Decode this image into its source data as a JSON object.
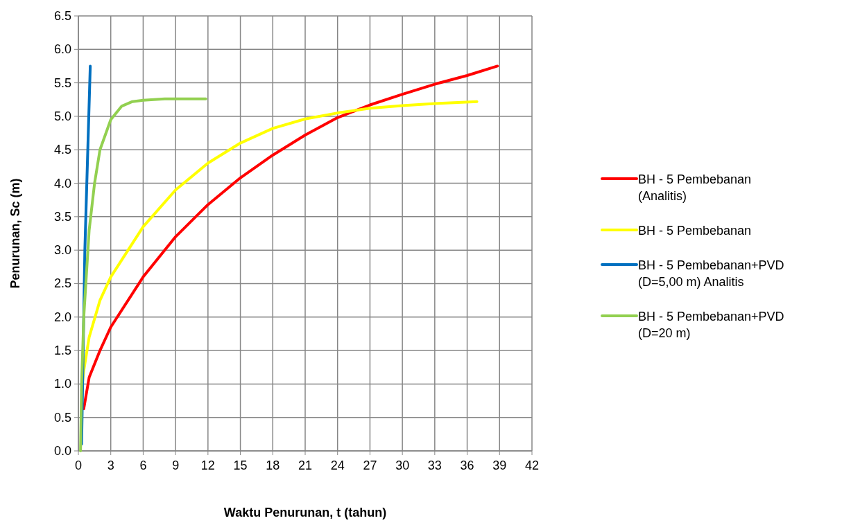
{
  "chart_data": {
    "type": "line",
    "xlabel": "Waktu Penurunan, t (tahun)",
    "ylabel": "Penurunan, Sc (m)",
    "xlim": [
      0,
      42
    ],
    "xticks": [
      0,
      3,
      6,
      9,
      12,
      15,
      18,
      21,
      24,
      27,
      30,
      33,
      36,
      39,
      42
    ],
    "ylim": [
      0,
      6.5
    ],
    "yticks": [
      {
        "value": 0,
        "label": "0.0"
      },
      {
        "value": 0.5,
        "label": "0.5"
      },
      {
        "value": 1,
        "label": "1.0"
      },
      {
        "value": 1.5,
        "label": "1.5"
      },
      {
        "value": 2,
        "label": "2.0"
      },
      {
        "value": 2.5,
        "label": "2.5"
      },
      {
        "value": 3,
        "label": "3.0"
      },
      {
        "value": 3.5,
        "label": "3.5"
      },
      {
        "value": 4,
        "label": "4.0"
      },
      {
        "value": 4.5,
        "label": "4.5"
      },
      {
        "value": 5,
        "label": "5.0"
      },
      {
        "value": 5.5,
        "label": "5.5"
      },
      {
        "value": 6,
        "label": "6.0"
      },
      {
        "value": 6.5,
        "label": "6.5"
      }
    ],
    "grid": true,
    "legend": "right",
    "marker": "none",
    "line_style": "solid",
    "series": [
      {
        "name": "BH - 5 Pembebanan (Analitis)",
        "color": "#ff0000",
        "x": [
          0.5,
          1,
          2,
          3,
          6,
          9,
          12,
          15,
          18,
          21,
          24,
          27,
          30,
          33,
          36,
          38.8
        ],
        "values": [
          0.63,
          1.1,
          1.5,
          1.85,
          2.6,
          3.2,
          3.68,
          4.08,
          4.42,
          4.72,
          4.98,
          5.17,
          5.33,
          5.48,
          5.61,
          5.75
        ]
      },
      {
        "name": "BH - 5 Pembebanan",
        "color": "#ffff00",
        "x": [
          0.3,
          0.5,
          1,
          2,
          3,
          6,
          9,
          12,
          15,
          18,
          21,
          24,
          27,
          30,
          33,
          36.9
        ],
        "values": [
          0.9,
          1.2,
          1.7,
          2.25,
          2.6,
          3.35,
          3.9,
          4.3,
          4.6,
          4.82,
          4.96,
          5.05,
          5.12,
          5.16,
          5.19,
          5.22
        ]
      },
      {
        "name": "BH - 5 Pembebanan+PVD (D=5,00 m) Analitis",
        "color": "#0070c0",
        "x": [
          0.3,
          0.6,
          1.1
        ],
        "values": [
          0.1,
          3.0,
          5.75
        ]
      },
      {
        "name": "BH - 5 Pembebanan+PVD (D=20 m)",
        "color": "#92d050",
        "x": [
          0.2,
          0.3,
          0.5,
          1,
          1.5,
          2,
          3,
          4,
          5,
          6,
          8,
          11.8
        ],
        "values": [
          0,
          1.0,
          2.0,
          3.3,
          4.0,
          4.5,
          4.95,
          5.15,
          5.22,
          5.24,
          5.26,
          5.26
        ]
      }
    ]
  }
}
